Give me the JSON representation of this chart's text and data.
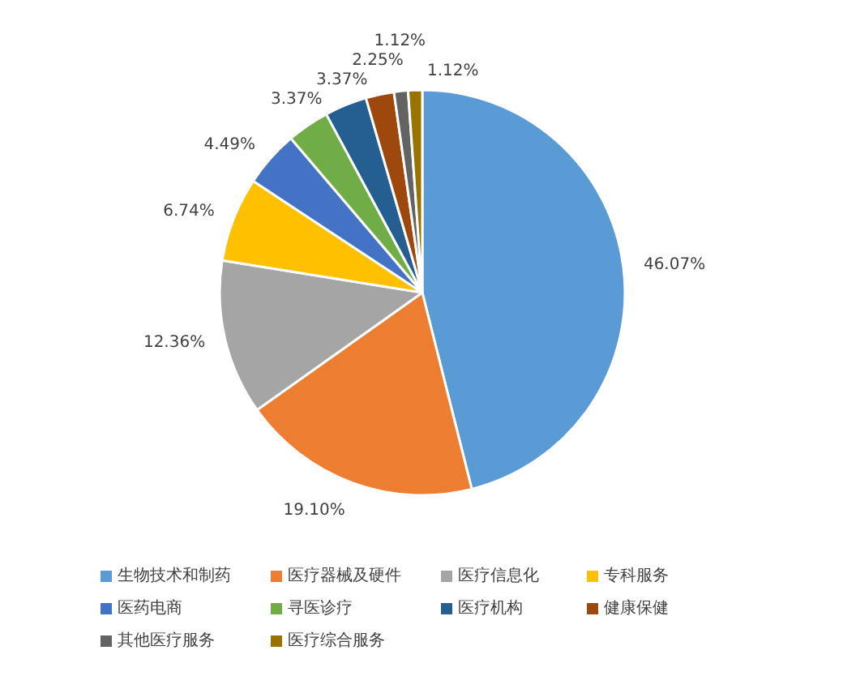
{
  "chart_data": {
    "type": "pie",
    "categories": [
      "生物技术和制药",
      "医疗器械及硬件",
      "医疗信息化",
      "专科服务",
      "医药电商",
      "寻医诊疗",
      "医疗机构",
      "健康保健",
      "其他医疗服务",
      "医疗综合服务"
    ],
    "values": [
      46.07,
      19.1,
      12.36,
      6.74,
      4.49,
      3.37,
      3.37,
      2.25,
      1.12,
      1.12
    ],
    "colors": [
      "#5b9bd5",
      "#ed7d31",
      "#a5a5a5",
      "#ffc000",
      "#4472c4",
      "#70ad47",
      "#255e91",
      "#9e480e",
      "#636363",
      "#997300"
    ],
    "value_labels": [
      "46.07%",
      "19.10%",
      "12.36%",
      "6.74%",
      "4.49%",
      "3.37%",
      "3.37%",
      "2.25%",
      "1.12%",
      "1.12%"
    ],
    "legend": "bottom"
  }
}
